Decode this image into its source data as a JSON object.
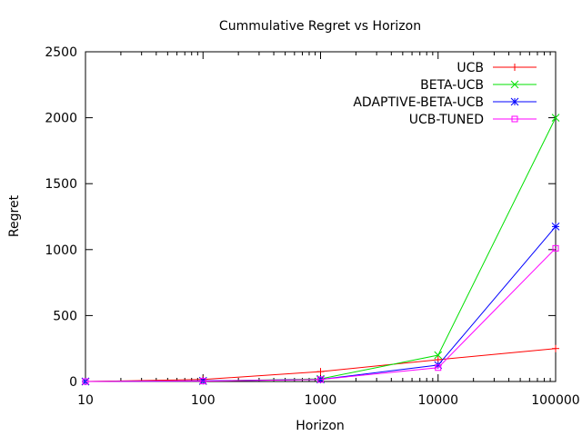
{
  "chart_data": {
    "type": "line",
    "title": "Cummulative Regret vs Horizon",
    "xlabel": "Horizon",
    "ylabel": "Regret",
    "x_scale": "log",
    "xlim": [
      10,
      100000
    ],
    "ylim": [
      0,
      2500
    ],
    "x_ticks": [
      "10",
      "100",
      "1000",
      "10000",
      "100000"
    ],
    "y_ticks": [
      "0",
      "500",
      "1000",
      "1500",
      "2000",
      "2500"
    ],
    "x_tick_values": [
      10,
      100,
      1000,
      10000,
      100000
    ],
    "y_tick_values": [
      0,
      500,
      1000,
      1500,
      2000,
      2500
    ],
    "grid": false,
    "legend_position": "top-right",
    "x": [
      10,
      100,
      1000,
      10000,
      100000
    ],
    "series": [
      {
        "name": "UCB",
        "color": "#ff0000",
        "marker": "plus",
        "values": [
          0,
          15,
          75,
          165,
          250
        ]
      },
      {
        "name": "BETA-UCB",
        "color": "#00e000",
        "marker": "cross",
        "values": [
          0,
          3,
          20,
          200,
          2000
        ]
      },
      {
        "name": "ADAPTIVE-BETA-UCB",
        "color": "#0000ff",
        "marker": "star",
        "values": [
          0,
          5,
          15,
          125,
          1175
        ]
      },
      {
        "name": "UCB-TUNED",
        "color": "#ff00ff",
        "marker": "square",
        "values": [
          0,
          3,
          15,
          105,
          1010
        ]
      }
    ]
  }
}
